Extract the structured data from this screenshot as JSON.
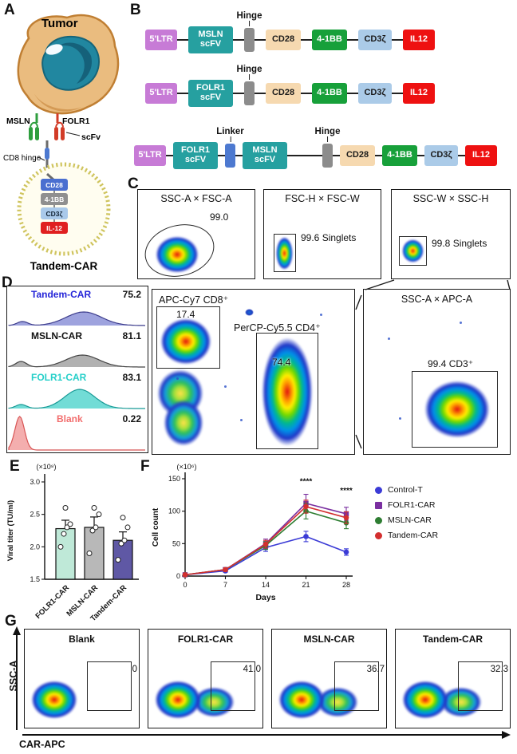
{
  "colors": {
    "ltr": "#c77bd6",
    "scfv": "#26a0a0",
    "hinge": "#8c8c8c",
    "linker": "#4d79d0",
    "cd28": "#f6d9b0",
    "bb41": "#17a03a",
    "cd3z": "#abcbe8",
    "il12": "#ee1111"
  },
  "panels": {
    "A": {
      "label": "A",
      "tumor": "Tumor",
      "msln": "MSLN",
      "folr1": "FOLR1",
      "scfv": "scFv",
      "cd8_hinge": "CD8 hinge",
      "cd28": "CD28",
      "bb41": "4-1BB",
      "cd3z": "CD3ζ",
      "il12": "IL-12",
      "cell_name": "Tandem-CAR"
    },
    "B": {
      "label": "B",
      "constructs": [
        {
          "blocks": [
            {
              "type": "ltr",
              "text": "5'LTR"
            },
            {
              "type": "scfv",
              "text": "MSLN\nscFV"
            },
            {
              "type": "hinge",
              "label": "Hinge"
            },
            {
              "type": "cd28",
              "text": "CD28"
            },
            {
              "type": "bb41",
              "text": "4-1BB"
            },
            {
              "type": "cd3z",
              "text": "CD3ζ"
            },
            {
              "type": "il12",
              "text": "IL12"
            }
          ]
        },
        {
          "blocks": [
            {
              "type": "ltr",
              "text": "5'LTR"
            },
            {
              "type": "scfv",
              "text": "FOLR1\nscFV"
            },
            {
              "type": "hinge",
              "label": "Hinge"
            },
            {
              "type": "cd28",
              "text": "CD28"
            },
            {
              "type": "bb41",
              "text": "4-1BB"
            },
            {
              "type": "cd3z",
              "text": "CD3ζ"
            },
            {
              "type": "il12",
              "text": "IL12"
            }
          ]
        },
        {
          "blocks": [
            {
              "type": "ltr",
              "text": "5'LTR"
            },
            {
              "type": "scfv",
              "text": "FOLR1\nscFV"
            },
            {
              "type": "linker",
              "label": "Linker"
            },
            {
              "type": "scfv",
              "text": "MSLN\nscFV"
            },
            {
              "type": "hinge",
              "label": "Hinge",
              "gap": true
            },
            {
              "type": "cd28",
              "text": "CD28"
            },
            {
              "type": "bb41",
              "text": "4-1BB"
            },
            {
              "type": "cd3z",
              "text": "CD3ζ"
            },
            {
              "type": "il12",
              "text": "IL12"
            }
          ]
        }
      ]
    },
    "C": {
      "label": "C",
      "plots": {
        "p1": {
          "title": "SSC-A × FSC-A",
          "value": "99.0"
        },
        "p2": {
          "title": "FSC-H × FSC-W",
          "value": "99.6 Singlets"
        },
        "p3": {
          "title": "SSC-W × SSC-H",
          "value": "99.8 Singlets"
        },
        "p4": {
          "gate1_title": "APC-Cy7 CD8⁺",
          "gate1_value": "17.4",
          "gate2_title": "PerCP-Cy5.5 CD4⁺",
          "gate2_value": "74.4"
        },
        "p5": {
          "title": "SSC-A × APC-A",
          "value": "99.4 CD3⁺"
        }
      }
    },
    "D": {
      "label": "D",
      "entries": [
        {
          "name": "Tandem-CAR",
          "value": "75.2",
          "color": "#2525d8",
          "fill": "#8d93d8",
          "stroke": "#3c3c8c"
        },
        {
          "name": "MSLN-CAR",
          "value": "81.1",
          "color": "#111111",
          "fill": "#a3a3a3",
          "stroke": "#444444"
        },
        {
          "name": "FOLR1-CAR",
          "value": "83.1",
          "color": "#25cfc9",
          "fill": "#59d6cf",
          "stroke": "#189a96"
        },
        {
          "name": "Blank",
          "value": "0.22",
          "color": "#f26d6d",
          "fill": "#f2a0a0",
          "stroke": "#d85555"
        }
      ]
    },
    "E": {
      "label": "E"
    },
    "F": {
      "label": "F"
    },
    "G": {
      "label": "G",
      "ylabel": "SSC-A",
      "xlabel": "CAR-APC",
      "plots": [
        {
          "title": "Blank",
          "value": "0",
          "positive": false
        },
        {
          "title": "FOLR1-CAR",
          "value": "41.0",
          "positive": true
        },
        {
          "title": "MSLN-CAR",
          "value": "36.7",
          "positive": true
        },
        {
          "title": "Tandem-CAR",
          "value": "32.3",
          "positive": true
        }
      ]
    }
  },
  "chart_data": [
    {
      "type": "bar",
      "panel": "E",
      "unit_label": "(×10⁸)",
      "ylabel": "Viral titer (TU/ml)",
      "ylim": [
        1.5,
        3.0
      ],
      "yticks": [
        1.5,
        2.0,
        2.5,
        3.0
      ],
      "categories": [
        "FOLR1-CAR",
        "MSLN-CAR",
        "Tandem-CAR"
      ],
      "values": [
        2.28,
        2.3,
        2.1
      ],
      "errors": [
        0.13,
        0.16,
        0.13
      ],
      "bar_colors": [
        "#bfe9d8",
        "#b8b8b8",
        "#5f58a5"
      ],
      "points": [
        [
          2.0,
          2.2,
          2.3,
          2.35,
          2.6
        ],
        [
          1.9,
          2.25,
          2.3,
          2.5,
          2.6
        ],
        [
          1.8,
          2.05,
          2.1,
          2.3,
          2.45
        ]
      ]
    },
    {
      "type": "line",
      "panel": "F",
      "unit_label": "(×10⁶)",
      "ylabel": "Cell count",
      "xlabel": "Days",
      "xticks": [
        0,
        7,
        14,
        21,
        28
      ],
      "yticks": [
        0,
        50,
        100,
        150
      ],
      "ylim": [
        0,
        150
      ],
      "series": [
        {
          "name": "Control-T",
          "color": "#3b3bd6",
          "marker": "circle",
          "values": [
            2,
            8,
            44,
            61,
            37
          ],
          "errors": [
            1,
            2,
            6,
            8,
            5
          ]
        },
        {
          "name": "FOLR1-CAR",
          "color": "#7a2fa0",
          "marker": "square",
          "values": [
            2,
            10,
            50,
            112,
            96
          ],
          "errors": [
            1,
            2,
            7,
            14,
            10
          ]
        },
        {
          "name": "MSLN-CAR",
          "color": "#2e7d32",
          "marker": "circle",
          "values": [
            2,
            10,
            47,
            100,
            82
          ],
          "errors": [
            1,
            2,
            6,
            12,
            9
          ]
        },
        {
          "name": "Tandem-CAR",
          "color": "#d32f2f",
          "marker": "circle",
          "values": [
            2,
            10,
            49,
            107,
            90
          ],
          "errors": [
            1,
            2,
            6,
            10,
            9
          ]
        }
      ],
      "annotations": [
        {
          "text": "****",
          "x": 21,
          "y": 142
        },
        {
          "text": "****",
          "x": 28,
          "y": 128
        }
      ]
    }
  ]
}
